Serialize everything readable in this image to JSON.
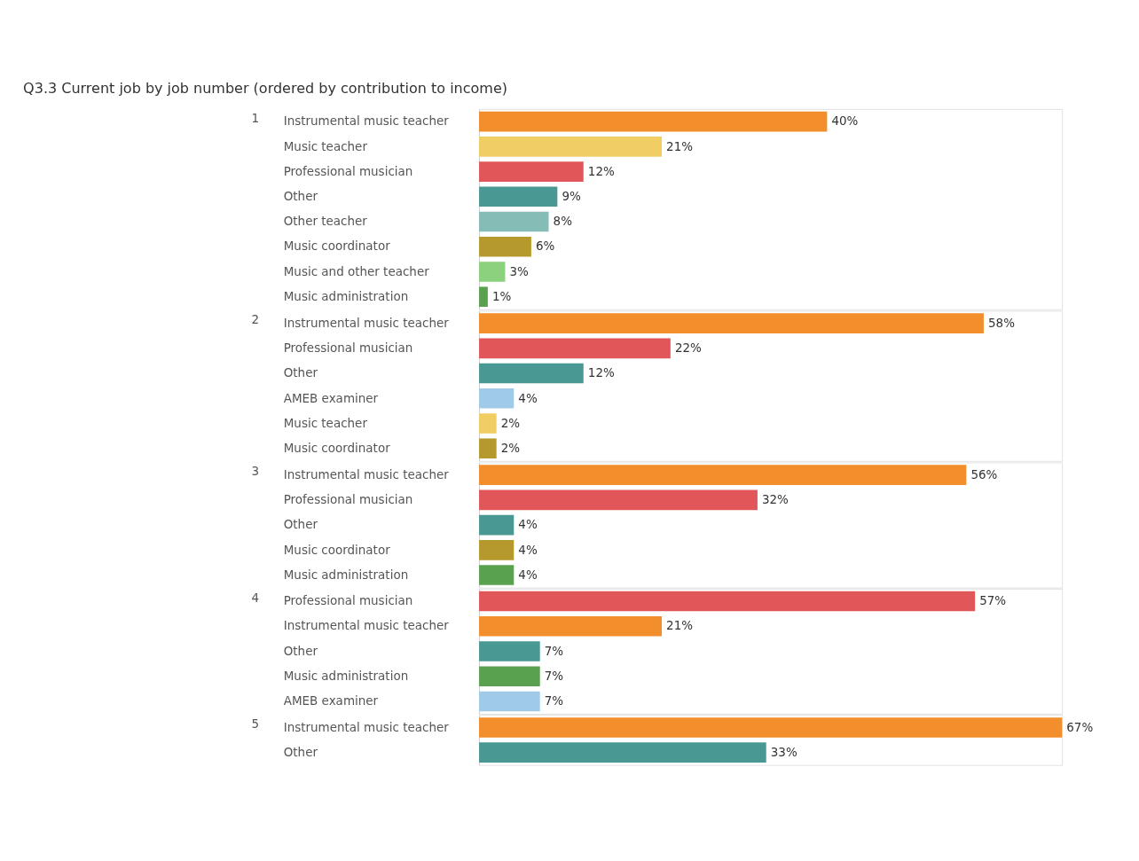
{
  "chart_data": [
    {
      "type": "bar",
      "orientation": "horizontal",
      "title": "Q3.3 Current job by job number (ordered by contribution to income)",
      "ylabel": "1",
      "categories": [
        "Instrumental music teacher",
        "Music teacher",
        "Professional musician",
        "Other",
        "Other teacher",
        "Music coordinator",
        "Music and other teacher",
        "Music administration"
      ],
      "values": [
        40,
        21,
        12,
        9,
        8,
        6,
        3,
        1
      ],
      "colors": [
        "#f28e2b",
        "#f1ce63",
        "#e15759",
        "#499894",
        "#86bcb6",
        "#b6992d",
        "#8cd17d",
        "#59a14f"
      ],
      "value_labels": [
        "40%",
        "21%",
        "12%",
        "9%",
        "8%",
        "6%",
        "3%",
        "1%"
      ]
    },
    {
      "type": "bar",
      "orientation": "horizontal",
      "ylabel": "2",
      "categories": [
        "Instrumental music teacher",
        "Professional musician",
        "Other",
        "AMEB examiner",
        "Music teacher",
        "Music coordinator"
      ],
      "values": [
        58,
        22,
        12,
        4,
        2,
        2
      ],
      "colors": [
        "#f28e2b",
        "#e15759",
        "#499894",
        "#a0cbe8",
        "#f1ce63",
        "#b6992d"
      ],
      "value_labels": [
        "58%",
        "22%",
        "12%",
        "4%",
        "2%",
        "2%"
      ]
    },
    {
      "type": "bar",
      "orientation": "horizontal",
      "ylabel": "3",
      "categories": [
        "Instrumental music teacher",
        "Professional musician",
        "Other",
        "Music coordinator",
        "Music administration"
      ],
      "values": [
        56,
        32,
        4,
        4,
        4
      ],
      "colors": [
        "#f28e2b",
        "#e15759",
        "#499894",
        "#b6992d",
        "#59a14f"
      ],
      "value_labels": [
        "56%",
        "32%",
        "4%",
        "4%",
        "4%"
      ]
    },
    {
      "type": "bar",
      "orientation": "horizontal",
      "ylabel": "4",
      "categories": [
        "Professional musician",
        "Instrumental music teacher",
        "Other",
        "Music administration",
        "AMEB examiner"
      ],
      "values": [
        57,
        21,
        7,
        7,
        7
      ],
      "colors": [
        "#e15759",
        "#f28e2b",
        "#499894",
        "#59a14f",
        "#a0cbe8"
      ],
      "value_labels": [
        "57%",
        "21%",
        "7%",
        "7%",
        "7%"
      ]
    },
    {
      "type": "bar",
      "orientation": "horizontal",
      "ylabel": "5",
      "categories": [
        "Instrumental music teacher",
        "Other"
      ],
      "values": [
        67,
        33
      ],
      "colors": [
        "#f28e2b",
        "#499894"
      ],
      "value_labels": [
        "67%",
        "33%"
      ]
    }
  ]
}
